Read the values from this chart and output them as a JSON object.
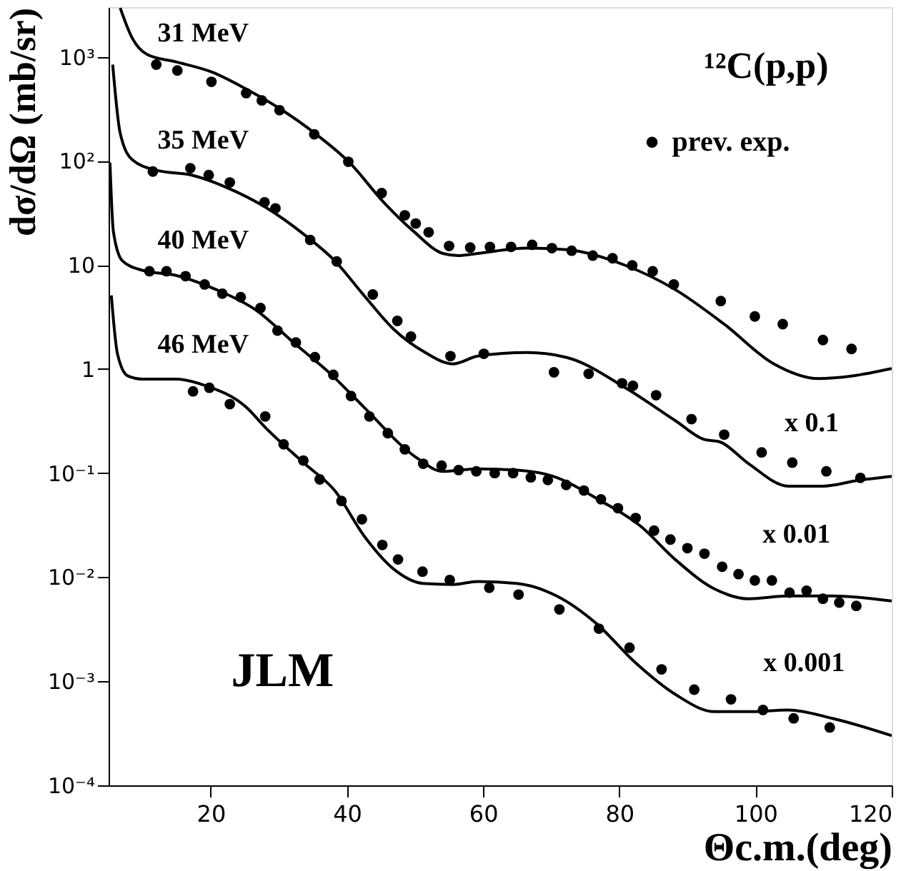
{
  "chart_data": {
    "type": "scatter",
    "xlabel": "Θc.m.(deg)",
    "ylabel": "dσ/dΩ (mb/sr)",
    "log": "y",
    "grid": false,
    "legend": "top right",
    "xlim": [
      5,
      120
    ],
    "ylim": [
      0.0001,
      3000
    ],
    "xticks": [
      20,
      40,
      60,
      80,
      100,
      120
    ],
    "yticks": [
      {
        "value": 0.0001,
        "label": "10⁻⁴"
      },
      {
        "value": 0.001,
        "label": "10⁻³"
      },
      {
        "value": 0.01,
        "label": "10⁻²"
      },
      {
        "value": 0.1,
        "label": "10⁻¹"
      },
      1,
      10,
      {
        "value": 100,
        "label": "10²"
      },
      {
        "value": 1000,
        "label": "10³"
      }
    ],
    "annotations": [
      "31 MeV",
      "35 MeV",
      "40 MeV",
      "46 MeV",
      "¹²C(p,p)",
      "x 0.1",
      "x 0.01",
      "x 0.001",
      "JLM"
    ],
    "series": [
      {
        "name": "prev. exp.",
        "color": "#000000",
        "marker": "circle",
        "x": [
          12,
          15.1,
          20.1,
          25.2,
          27.5,
          30.1,
          35.2,
          40.2,
          45.1,
          48.5,
          50.1,
          52,
          55,
          58.1,
          61,
          64.1,
          67.2,
          70.1,
          73,
          76.1,
          79,
          81.9,
          84.9,
          88,
          94.9,
          99.9,
          104,
          109.9,
          114.1
        ],
        "values": [
          841,
          738,
          575,
          448,
          381,
          307,
          180,
          98,
          49,
          30,
          25,
          20.6,
          15.2,
          14.7,
          14.9,
          14.9,
          15.6,
          14.5,
          13.7,
          12.3,
          11.6,
          9.9,
          8.7,
          6.5,
          4.5,
          3.2,
          2.7,
          1.9,
          1.56
        ]
      },
      {
        "color": "#000000",
        "marker": "circle",
        "x": [
          11.5,
          17,
          19.7,
          22.8,
          27.9,
          29.5,
          34.6,
          38.5,
          43.8,
          47.4,
          49.4,
          55.2,
          60.1,
          70.4,
          75.5,
          80.4,
          82,
          85.4,
          90.6,
          95.4,
          100.9,
          105.4,
          110.4,
          115.4
        ],
        "values": [
          79,
          85,
          73,
          62,
          40,
          35,
          17.4,
          10.8,
          5.2,
          2.9,
          2.05,
          1.33,
          1.4,
          0.93,
          0.9,
          0.73,
          0.69,
          0.56,
          0.33,
          0.234,
          0.158,
          0.126,
          0.104,
          0.09
        ]
      },
      {
        "color": "#000000",
        "marker": "circle",
        "x": [
          11,
          13.5,
          16.3,
          19.1,
          21.7,
          24.4,
          27.3,
          29.8,
          32.5,
          35.3,
          38,
          40.6,
          43.3,
          46,
          48.5,
          51.2,
          53.9,
          56.4,
          59,
          61.7,
          64.4,
          67,
          69.5,
          72.2,
          74.8,
          77.3,
          79.8,
          82.4,
          85.1,
          87.5,
          90,
          92.5,
          95.1,
          97.5,
          99.9,
          102.4,
          105,
          107.5,
          109.9,
          112.3,
          114.8
        ],
        "values": [
          8.7,
          8.7,
          7.8,
          6.5,
          5.3,
          4.9,
          3.85,
          2.34,
          1.8,
          1.3,
          0.88,
          0.55,
          0.35,
          0.242,
          0.169,
          0.123,
          0.118,
          0.107,
          0.104,
          0.1,
          0.1,
          0.091,
          0.086,
          0.077,
          0.068,
          0.056,
          0.046,
          0.037,
          0.028,
          0.023,
          0.019,
          0.0168,
          0.0126,
          0.0107,
          0.0093,
          0.0093,
          0.0071,
          0.0074,
          0.0062,
          0.0057,
          0.0053
        ]
      },
      {
        "color": "#000000",
        "marker": "circle",
        "x": [
          17.4,
          19.8,
          22.8,
          28,
          30.7,
          33.6,
          36,
          39.2,
          42.2,
          45.2,
          47.5,
          51.1,
          55.1,
          60.9,
          65.2,
          71.2,
          77,
          81.5,
          86.2,
          91,
          96.4,
          101.1,
          105.6,
          110.9
        ],
        "values": [
          0.61,
          0.66,
          0.46,
          0.35,
          0.189,
          0.132,
          0.087,
          0.054,
          0.036,
          0.0204,
          0.0148,
          0.0113,
          0.0094,
          0.0079,
          0.0068,
          0.0049,
          0.0032,
          0.0021,
          0.0013,
          0.00083,
          0.00067,
          0.00053,
          0.00044,
          0.00036
        ]
      },
      {
        "type": "line",
        "color": "#000000",
        "marker": "none",
        "x": [
          6.7,
          8.5,
          10.7,
          15,
          20.1,
          25.2,
          30.2,
          35.3,
          40.4,
          45.4,
          49.8,
          54.1,
          56.3,
          59.2,
          66.5,
          72.3,
          80.9,
          88.2,
          95.4,
          102.7,
          109.2,
          114.3,
          120
        ],
        "values": [
          2950,
          1500,
          1050,
          890,
          716,
          490,
          316,
          184,
          96,
          40,
          21,
          12.9,
          12.3,
          12.9,
          14.5,
          14,
          9.9,
          5.8,
          2.7,
          1.12,
          0.81,
          0.86,
          1.01
        ]
      },
      {
        "type": "line",
        "color": "#000000",
        "marker": "none",
        "x": [
          5.6,
          6.7,
          8.5,
          12.1,
          17.2,
          22.2,
          28,
          33.8,
          38.2,
          42.5,
          46.9,
          51.2,
          55.6,
          59.2,
          66.5,
          72.3,
          80.9,
          88.2,
          92.5,
          94.7,
          99,
          104.8,
          109.9,
          115,
          120
        ],
        "values": [
          841,
          185,
          102,
          81,
          73,
          56,
          36,
          19.4,
          11,
          5.1,
          2.4,
          1.48,
          1.12,
          1.33,
          1.44,
          1.29,
          0.66,
          0.32,
          0.21,
          0.2,
          0.123,
          0.075,
          0.075,
          0.085,
          0.093
        ]
      },
      {
        "type": "line",
        "color": "#000000",
        "marker": "none",
        "x": [
          5.2,
          5.7,
          7,
          9.9,
          15,
          20.8,
          26.6,
          32.4,
          37.5,
          42.5,
          50,
          54.1,
          59.2,
          65,
          70.1,
          77.3,
          83.1,
          88.2,
          94,
          99,
          104.8,
          111.3,
          120
        ],
        "values": [
          96,
          21,
          11,
          8.9,
          7.9,
          5.8,
          3.7,
          1.74,
          0.91,
          0.43,
          0.144,
          0.104,
          0.11,
          0.107,
          0.094,
          0.054,
          0.031,
          0.0148,
          0.0077,
          0.0062,
          0.0066,
          0.0066,
          0.0059
        ]
      },
      {
        "type": "line",
        "color": "#000000",
        "marker": "none",
        "x": [
          5.4,
          6.3,
          7.8,
          9.9,
          15,
          19.3,
          25.2,
          28,
          33.8,
          38.2,
          42.5,
          46.9,
          51.2,
          55.6,
          59.2,
          65,
          70.8,
          76.6,
          82.4,
          88.2,
          94,
          99,
          104.8,
          111.3,
          120
        ],
        "values": [
          5.1,
          1.4,
          0.86,
          0.8,
          0.8,
          0.69,
          0.43,
          0.275,
          0.123,
          0.068,
          0.025,
          0.0119,
          0.0087,
          0.0085,
          0.0091,
          0.0087,
          0.0066,
          0.0036,
          0.0015,
          0.00075,
          0.00051,
          0.00051,
          0.00053,
          0.00044,
          0.0003
        ]
      }
    ]
  }
}
